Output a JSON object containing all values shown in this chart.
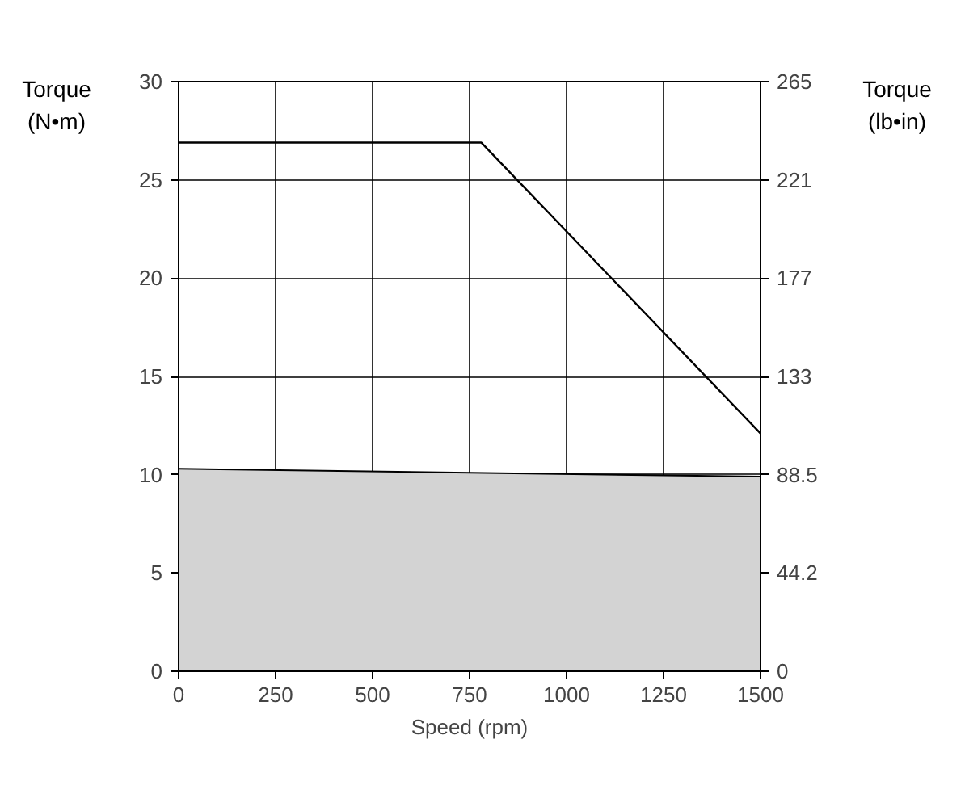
{
  "chart_data": {
    "type": "line",
    "xlabel": "Speed (rpm)",
    "ylabel": "Torque\n(N•m)",
    "y2label": "Torque\n(lb•in)",
    "xlim": [
      0,
      1500
    ],
    "xticks": [
      0,
      250,
      500,
      750,
      1000,
      1250,
      1500
    ],
    "ylim": [
      0,
      30
    ],
    "yticks": [
      0,
      5,
      10,
      15,
      20,
      25,
      30
    ],
    "y2lim": [
      0,
      265.5
    ],
    "y2ticks": [
      {
        "value": 0,
        "label": "0"
      },
      {
        "value": 44.25,
        "label": "44.2"
      },
      {
        "value": 88.5,
        "label": "88.5"
      },
      {
        "value": 132.75,
        "label": "133"
      },
      {
        "value": 177,
        "label": "177"
      },
      {
        "value": 221.25,
        "label": "221"
      },
      {
        "value": 265.5,
        "label": "265"
      }
    ],
    "grid": true,
    "series": [
      {
        "type": "area",
        "color": "#d3d3d3",
        "x": [
          0,
          1500
        ],
        "values": [
          10.3,
          9.9
        ]
      },
      {
        "color": "#000000",
        "x": [
          0,
          780,
          1500
        ],
        "values": [
          26.9,
          26.9,
          12.1
        ]
      }
    ]
  }
}
